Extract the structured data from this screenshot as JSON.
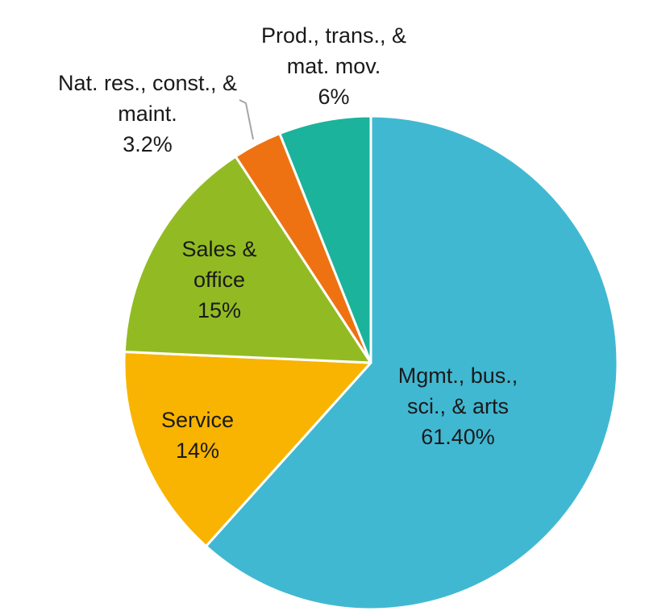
{
  "chart_data": {
    "type": "pie",
    "start": "12 o'clock",
    "direction": "clockwise",
    "slices": [
      {
        "label_lines": [
          "Mgmt., bus.,",
          "sci., & arts"
        ],
        "value_label": "61.40%",
        "value": 61.4,
        "color": "#41b8d2"
      },
      {
        "label_lines": [
          "Service"
        ],
        "value_label": "14%",
        "value": 14.0,
        "color": "#f8b400"
      },
      {
        "label_lines": [
          "Sales &",
          "office"
        ],
        "value_label": "15%",
        "value": 15.0,
        "color": "#92bb23"
      },
      {
        "label_lines": [
          "Nat. res., const., &",
          "maint."
        ],
        "value_label": "3.2%",
        "value": 3.2,
        "color": "#ee7212"
      },
      {
        "label_lines": [
          "Prod., trans., &",
          "mat. mov."
        ],
        "value_label": "6%",
        "value": 6.0,
        "color": "#1bb39c"
      }
    ],
    "slice_border_color": "#ffffff",
    "leader_line_color": "#a6a6a6"
  }
}
